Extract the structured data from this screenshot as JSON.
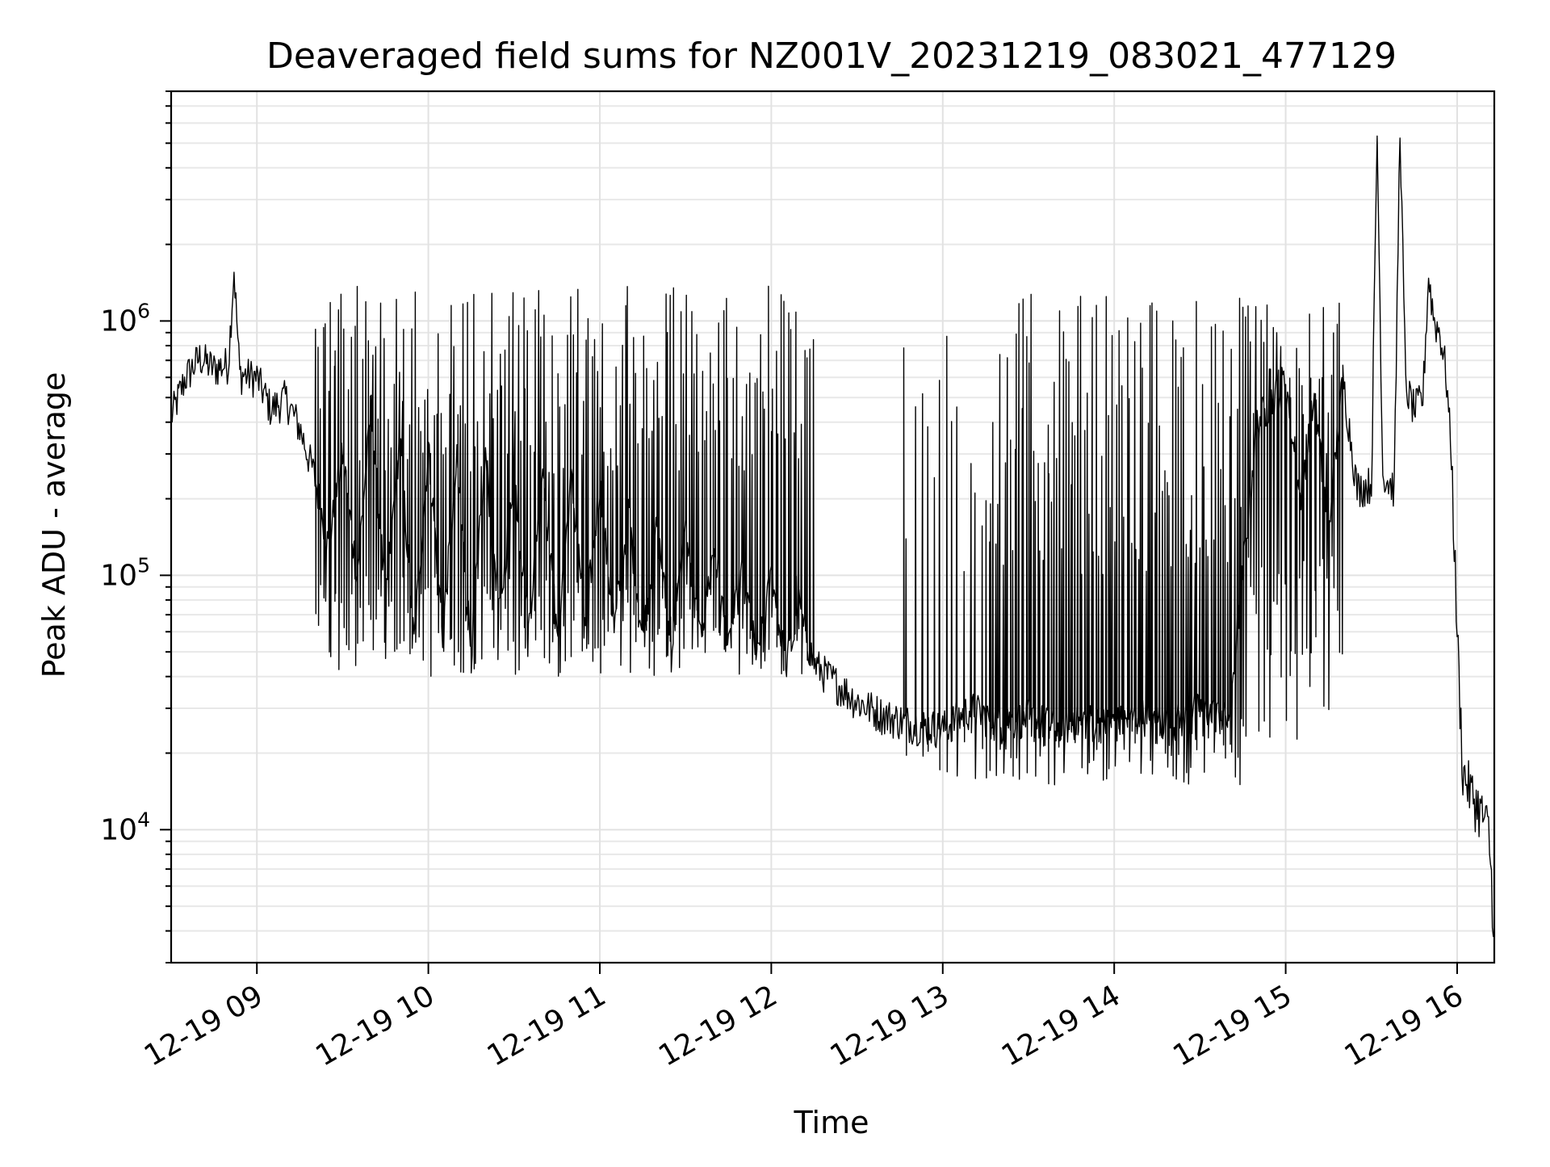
{
  "chart_data": {
    "type": "line",
    "title": "Deaveraged field sums for NZ001V_20231219_083021_477129",
    "xlabel": "Time",
    "ylabel": "Peak ADU - average",
    "yscale": "log",
    "ylim": [
      3000,
      8000000
    ],
    "xlim": [
      "2023-12-19 08:30",
      "2023-12-19 16:13"
    ],
    "grid": true,
    "line_color": "#000000",
    "x_ticks": [
      {
        "time": "2023-12-19 09:00",
        "label": "12-19 09"
      },
      {
        "time": "2023-12-19 10:00",
        "label": "12-19 10"
      },
      {
        "time": "2023-12-19 11:00",
        "label": "12-19 11"
      },
      {
        "time": "2023-12-19 12:00",
        "label": "12-19 12"
      },
      {
        "time": "2023-12-19 13:00",
        "label": "12-19 13"
      },
      {
        "time": "2023-12-19 14:00",
        "label": "12-19 14"
      },
      {
        "time": "2023-12-19 15:00",
        "label": "12-19 15"
      },
      {
        "time": "2023-12-19 16:00",
        "label": "12-19 16"
      }
    ],
    "y_ticks": [
      {
        "value": 10000,
        "base": "10",
        "exp": "4"
      },
      {
        "value": 100000,
        "base": "10",
        "exp": "5"
      },
      {
        "value": 1000000,
        "base": "10",
        "exp": "6"
      }
    ],
    "series": [
      {
        "points": [
          [
            "2023-12-19 08:30",
            420000
          ],
          [
            "2023-12-19 08:35",
            600000
          ],
          [
            "2023-12-19 08:40",
            720000
          ],
          [
            "2023-12-19 08:45",
            650000
          ],
          [
            "2023-12-19 08:50",
            680000
          ],
          [
            "2023-12-19 08:52",
            1600000
          ],
          [
            "2023-12-19 08:54",
            620000
          ],
          [
            "2023-12-19 09:00",
            600000
          ],
          [
            "2023-12-19 09:05",
            450000
          ],
          [
            "2023-12-19 09:10",
            500000
          ],
          [
            "2023-12-19 09:15",
            380000
          ],
          [
            "2023-12-19 09:20",
            250000
          ],
          [
            "2023-12-19 09:25",
            130000
          ],
          [
            "2023-12-19 09:30",
            300000
          ],
          [
            "2023-12-19 09:35",
            100000
          ],
          [
            "2023-12-19 09:40",
            450000
          ],
          [
            "2023-12-19 09:45",
            80000
          ],
          [
            "2023-12-19 09:50",
            350000
          ],
          [
            "2023-12-19 09:55",
            55000
          ],
          [
            "2023-12-19 10:00",
            320000
          ],
          [
            "2023-12-19 10:05",
            60000
          ],
          [
            "2023-12-19 10:10",
            280000
          ],
          [
            "2023-12-19 10:15",
            50000
          ],
          [
            "2023-12-19 10:20",
            300000
          ],
          [
            "2023-12-19 10:25",
            70000
          ],
          [
            "2023-12-19 10:30",
            260000
          ],
          [
            "2023-12-19 10:35",
            60000
          ],
          [
            "2023-12-19 10:40",
            280000
          ],
          [
            "2023-12-19 10:45",
            55000
          ],
          [
            "2023-12-19 10:50",
            240000
          ],
          [
            "2023-12-19 10:55",
            65000
          ],
          [
            "2023-12-19 11:00",
            230000
          ],
          [
            "2023-12-19 11:05",
            60000
          ],
          [
            "2023-12-19 11:10",
            180000
          ],
          [
            "2023-12-19 11:15",
            55000
          ],
          [
            "2023-12-19 11:20",
            160000
          ],
          [
            "2023-12-19 11:25",
            50000
          ],
          [
            "2023-12-19 11:30",
            150000
          ],
          [
            "2023-12-19 11:35",
            55000
          ],
          [
            "2023-12-19 11:40",
            130000
          ],
          [
            "2023-12-19 11:45",
            50000
          ],
          [
            "2023-12-19 11:50",
            110000
          ],
          [
            "2023-12-19 11:55",
            45000
          ],
          [
            "2023-12-19 12:00",
            100000
          ],
          [
            "2023-12-19 12:05",
            45000
          ],
          [
            "2023-12-19 12:10",
            70000
          ],
          [
            "2023-12-19 12:15",
            45000
          ],
          [
            "2023-12-19 12:20",
            40000
          ],
          [
            "2023-12-19 12:25",
            36000
          ],
          [
            "2023-12-19 12:30",
            32000
          ],
          [
            "2023-12-19 12:40",
            28000
          ],
          [
            "2023-12-19 12:50",
            26000
          ],
          [
            "2023-12-19 13:00",
            25000
          ],
          [
            "2023-12-19 13:10",
            30000
          ],
          [
            "2023-12-19 13:20",
            26000
          ],
          [
            "2023-12-19 13:30",
            28000
          ],
          [
            "2023-12-19 13:40",
            25000
          ],
          [
            "2023-12-19 13:50",
            27000
          ],
          [
            "2023-12-19 14:00",
            26000
          ],
          [
            "2023-12-19 14:10",
            28000
          ],
          [
            "2023-12-19 14:20",
            26000
          ],
          [
            "2023-12-19 14:30",
            30000
          ],
          [
            "2023-12-19 14:40",
            27000
          ],
          [
            "2023-12-19 14:50",
            400000
          ],
          [
            "2023-12-19 15:00",
            600000
          ],
          [
            "2023-12-19 15:05",
            200000
          ],
          [
            "2023-12-19 15:10",
            500000
          ],
          [
            "2023-12-19 15:15",
            150000
          ],
          [
            "2023-12-19 15:20",
            600000
          ],
          [
            "2023-12-19 15:25",
            220000
          ],
          [
            "2023-12-19 15:30",
            230000
          ],
          [
            "2023-12-19 15:32",
            5500000
          ],
          [
            "2023-12-19 15:34",
            250000
          ],
          [
            "2023-12-19 15:38",
            220000
          ],
          [
            "2023-12-19 15:40",
            6000000
          ],
          [
            "2023-12-19 15:42",
            550000
          ],
          [
            "2023-12-19 15:45",
            450000
          ],
          [
            "2023-12-19 15:48",
            500000
          ],
          [
            "2023-12-19 15:50",
            1500000
          ],
          [
            "2023-12-19 15:52",
            1000000
          ],
          [
            "2023-12-19 15:54",
            900000
          ],
          [
            "2023-12-19 15:56",
            650000
          ],
          [
            "2023-12-19 15:58",
            300000
          ],
          [
            "2023-12-19 16:00",
            60000
          ],
          [
            "2023-12-19 16:02",
            17000
          ],
          [
            "2023-12-19 16:05",
            14000
          ],
          [
            "2023-12-19 16:08",
            12000
          ],
          [
            "2023-12-19 16:11",
            10000
          ],
          [
            "2023-12-19 16:13",
            4000
          ]
        ],
        "spikes": [
          {
            "start": "2023-12-19 09:20",
            "end": "2023-12-19 12:15",
            "count": 190,
            "low": [
              40000,
              100000
            ],
            "high": [
              250000,
              1400000
            ]
          },
          {
            "start": "2023-12-19 12:45",
            "end": "2023-12-19 13:15",
            "count": 14,
            "low": [
              15000,
              28000
            ],
            "high": [
              100000,
              1200000
            ]
          },
          {
            "start": "2023-12-19 13:15",
            "end": "2023-12-19 14:45",
            "count": 110,
            "low": [
              15000,
              30000
            ],
            "high": [
              100000,
              1300000
            ]
          },
          {
            "start": "2023-12-19 14:45",
            "end": "2023-12-19 15:20",
            "count": 40,
            "low": [
              20000,
              120000
            ],
            "high": [
              300000,
              1200000
            ]
          }
        ]
      }
    ]
  }
}
